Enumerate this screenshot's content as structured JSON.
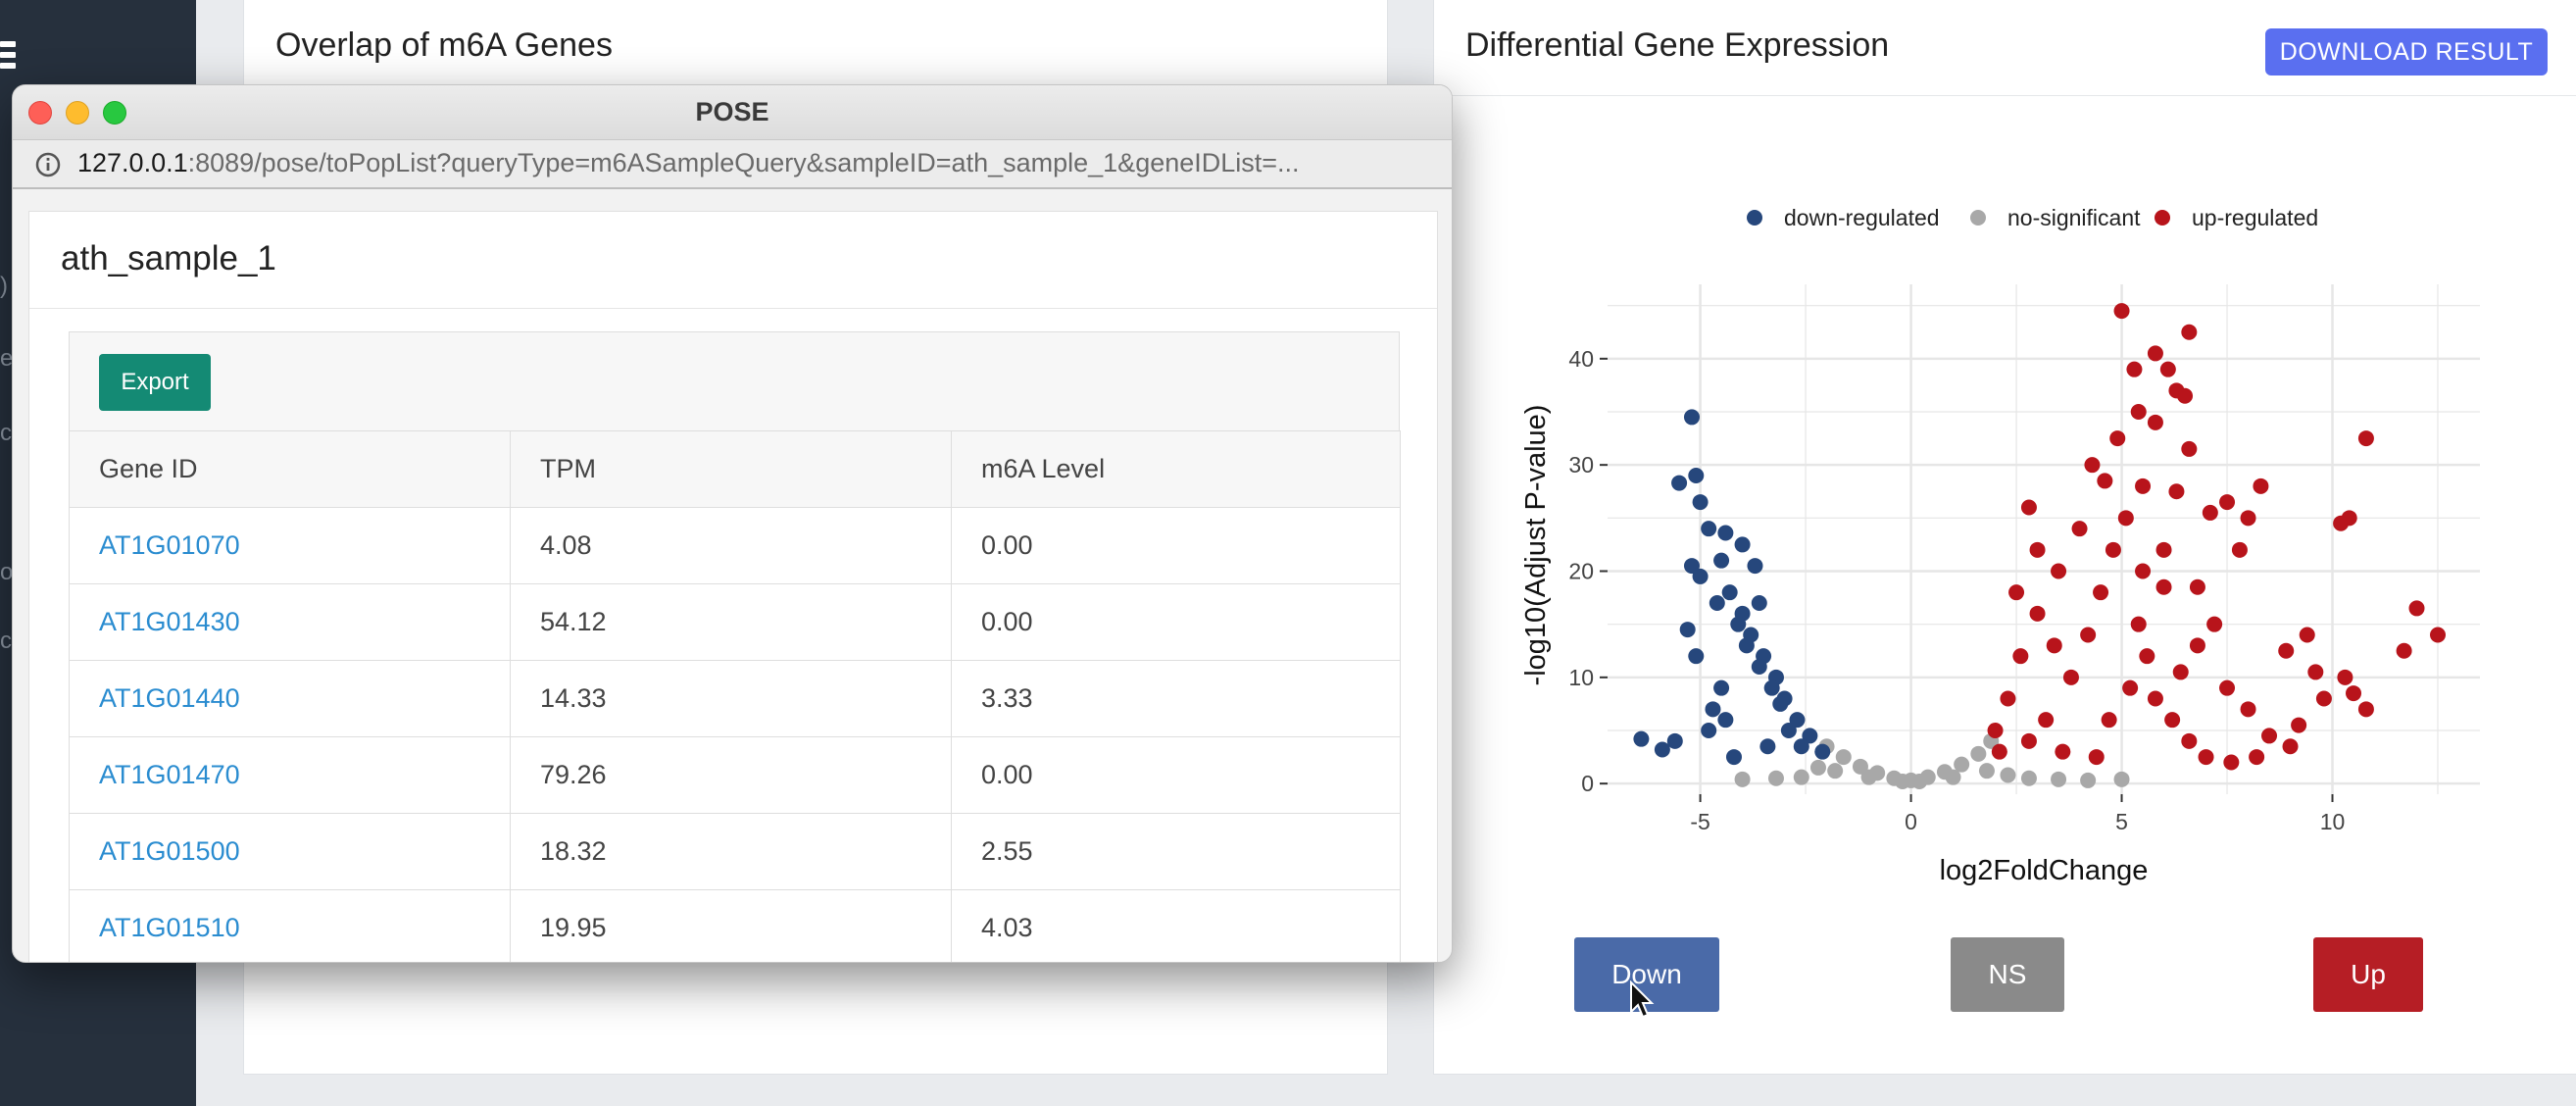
{
  "left_panel": {
    "title": "Overlap of m6A Genes"
  },
  "right_panel": {
    "title": "Differential Gene Expression",
    "download_label": "DOWNLOAD RESULT",
    "buttons": {
      "down": "Down",
      "ns": "NS",
      "up": "Up"
    }
  },
  "popup": {
    "window_title": "POSE",
    "url_host": "127.0.0.1",
    "url_rest": ":8089/pose/toPopList?queryType=m6ASampleQuery&sampleID=ath_sample_1&geneIDList=...",
    "sample_title": "ath_sample_1",
    "export_label": "Export",
    "columns": [
      "Gene ID",
      "TPM",
      "m6A Level"
    ],
    "rows": [
      [
        "AT1G01070",
        "4.08",
        "0.00"
      ],
      [
        "AT1G01430",
        "54.12",
        "0.00"
      ],
      [
        "AT1G01440",
        "14.33",
        "3.33"
      ],
      [
        "AT1G01470",
        "79.26",
        "0.00"
      ],
      [
        "AT1G01500",
        "18.32",
        "2.55"
      ],
      [
        "AT1G01510",
        "19.95",
        "4.03"
      ]
    ]
  },
  "chart_data": {
    "type": "scatter",
    "xlabel": "log2FoldChange",
    "ylabel": "-log10(Adjust P-value)",
    "xlim": [
      -7.2,
      13.5
    ],
    "ylim": [
      -1,
      47
    ],
    "xticks": [
      -5,
      0,
      5,
      10
    ],
    "yticks": [
      0,
      10,
      20,
      30,
      40
    ],
    "grid": true,
    "legend_position": "top",
    "series": [
      {
        "name": "down-regulated",
        "color": "#26477c",
        "points": [
          [
            -5.2,
            34.5
          ],
          [
            -5.1,
            29
          ],
          [
            -5.5,
            28.3
          ],
          [
            -5.0,
            26.5
          ],
          [
            -4.8,
            24
          ],
          [
            -4.4,
            23.6
          ],
          [
            -4.5,
            21
          ],
          [
            -5.2,
            20.5
          ],
          [
            -5.0,
            19.5
          ],
          [
            -4.3,
            18
          ],
          [
            -4.0,
            16
          ],
          [
            -3.8,
            14
          ],
          [
            -3.5,
            12
          ],
          [
            -3.2,
            10
          ],
          [
            -3.0,
            8
          ],
          [
            -2.7,
            6
          ],
          [
            -2.4,
            4.5
          ],
          [
            -2.1,
            3
          ],
          [
            -5.1,
            12
          ],
          [
            -4.5,
            9
          ],
          [
            -4.7,
            7
          ],
          [
            -5.6,
            4
          ],
          [
            -5.9,
            3.2
          ],
          [
            -6.4,
            4.2
          ],
          [
            -4.2,
            2.5
          ],
          [
            -3.6,
            11
          ],
          [
            -3.9,
            13
          ],
          [
            -4.1,
            15
          ],
          [
            -4.6,
            17
          ],
          [
            -3.3,
            9
          ],
          [
            -2.9,
            5
          ],
          [
            -3.4,
            3.5
          ],
          [
            -4.8,
            5
          ],
          [
            -4.4,
            6
          ],
          [
            -3.7,
            20.5
          ],
          [
            -4.0,
            22.5
          ],
          [
            -3.6,
            17
          ],
          [
            -3.1,
            7.5
          ],
          [
            -2.6,
            3.5
          ],
          [
            -5.3,
            14.5
          ]
        ]
      },
      {
        "name": "no-significant",
        "color": "#a8a8a8",
        "points": [
          [
            -2.0,
            3.5
          ],
          [
            -1.6,
            2.5
          ],
          [
            -1.2,
            1.6
          ],
          [
            -0.8,
            1.0
          ],
          [
            -0.4,
            0.5
          ],
          [
            0.0,
            0.3
          ],
          [
            0.4,
            0.6
          ],
          [
            0.8,
            1.1
          ],
          [
            1.2,
            1.8
          ],
          [
            1.6,
            2.8
          ],
          [
            1.9,
            4.0
          ],
          [
            -2.2,
            1.5
          ],
          [
            -1.8,
            1.2
          ],
          [
            -1.0,
            0.6
          ],
          [
            -0.2,
            0.2
          ],
          [
            0.2,
            0.2
          ],
          [
            1.0,
            0.6
          ],
          [
            1.8,
            1.2
          ],
          [
            2.3,
            0.8
          ],
          [
            2.8,
            0.5
          ],
          [
            3.5,
            0.4
          ],
          [
            4.2,
            0.3
          ],
          [
            5.0,
            0.4
          ],
          [
            -2.6,
            0.6
          ],
          [
            -3.2,
            0.5
          ],
          [
            -4.0,
            0.4
          ]
        ]
      },
      {
        "name": "up-regulated",
        "color": "#b8141b",
        "points": [
          [
            5.0,
            44.5
          ],
          [
            6.6,
            42.5
          ],
          [
            5.8,
            40.5
          ],
          [
            5.3,
            39
          ],
          [
            6.1,
            39
          ],
          [
            6.3,
            37
          ],
          [
            6.5,
            36.5
          ],
          [
            5.4,
            35
          ],
          [
            5.8,
            34
          ],
          [
            6.6,
            31.5
          ],
          [
            4.9,
            32.5
          ],
          [
            4.3,
            30
          ],
          [
            4.6,
            28.5
          ],
          [
            5.5,
            28
          ],
          [
            6.3,
            27.5
          ],
          [
            7.1,
            25.5
          ],
          [
            8.3,
            28
          ],
          [
            7.5,
            26.5
          ],
          [
            8.0,
            25
          ],
          [
            7.8,
            22
          ],
          [
            10.2,
            24.5
          ],
          [
            10.4,
            25
          ],
          [
            10.8,
            32.5
          ],
          [
            12.0,
            16.5
          ],
          [
            12.5,
            14
          ],
          [
            11.7,
            12.5
          ],
          [
            9.4,
            14
          ],
          [
            8.9,
            12.5
          ],
          [
            9.6,
            10.5
          ],
          [
            10.3,
            10
          ],
          [
            10.5,
            8.5
          ],
          [
            10.8,
            7
          ],
          [
            7.2,
            15
          ],
          [
            6.8,
            13
          ],
          [
            6.0,
            18.5
          ],
          [
            5.5,
            20
          ],
          [
            6.4,
            10.5
          ],
          [
            7.5,
            9
          ],
          [
            8.0,
            7
          ],
          [
            8.5,
            4.5
          ],
          [
            9.2,
            5.5
          ],
          [
            9.8,
            8
          ],
          [
            4.0,
            24
          ],
          [
            3.5,
            20
          ],
          [
            3.0,
            16
          ],
          [
            2.6,
            12
          ],
          [
            2.3,
            8
          ],
          [
            2.0,
            5
          ],
          [
            2.1,
            3
          ],
          [
            3.2,
            6
          ],
          [
            3.8,
            10
          ],
          [
            4.2,
            14
          ],
          [
            4.5,
            18
          ],
          [
            4.8,
            22
          ],
          [
            5.1,
            25
          ],
          [
            5.4,
            15
          ],
          [
            5.6,
            12
          ],
          [
            5.8,
            8
          ],
          [
            6.2,
            6
          ],
          [
            6.6,
            4
          ],
          [
            7.0,
            2.5
          ],
          [
            7.6,
            2
          ],
          [
            8.2,
            2.5
          ],
          [
            9.0,
            3.5
          ],
          [
            2.8,
            4
          ],
          [
            3.6,
            3
          ],
          [
            4.4,
            2.5
          ],
          [
            4.7,
            6
          ],
          [
            5.2,
            9
          ],
          [
            6.0,
            22
          ],
          [
            6.8,
            18.5
          ],
          [
            3.0,
            22
          ],
          [
            2.5,
            18
          ],
          [
            2.8,
            26
          ],
          [
            3.4,
            13
          ]
        ]
      }
    ]
  }
}
